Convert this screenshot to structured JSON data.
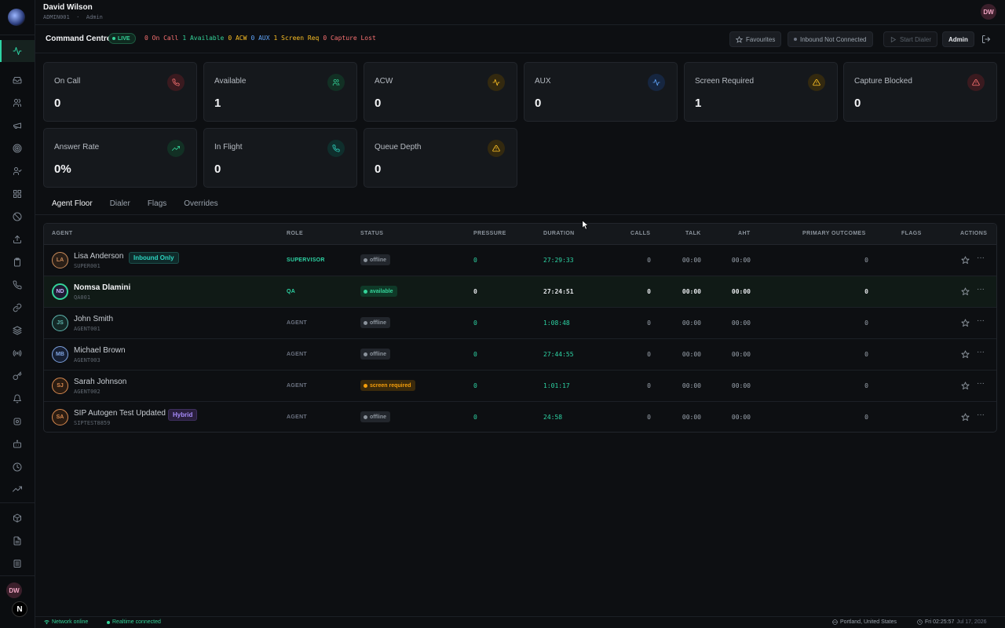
{
  "user": {
    "name": "David Wilson",
    "code": "ADMIN001",
    "role": "Admin",
    "initials": "DW"
  },
  "command": {
    "title": "Command Centre",
    "live_label": "LIVE",
    "counters": [
      {
        "text": "0 On Call",
        "color": "#f87171"
      },
      {
        "text": "1 Available",
        "color": "#34d399"
      },
      {
        "text": "0 ACW",
        "color": "#fbbf24"
      },
      {
        "text": "0 AUX",
        "color": "#60a5fa"
      },
      {
        "text": "1 Screen Req",
        "color": "#fbbf24"
      },
      {
        "text": "0 Capture Lost",
        "color": "#f87171"
      }
    ],
    "buttons": {
      "favourites": "Favourites",
      "inbound": "Inbound Not Connected",
      "start_dialer": "Start Dialer",
      "admin": "Admin"
    }
  },
  "metrics": [
    {
      "label": "On Call",
      "value": "0",
      "icon": "phone-icon",
      "color": "#f87171",
      "bg": "#3a1a1f"
    },
    {
      "label": "Available",
      "value": "1",
      "icon": "users-icon",
      "color": "#34d399",
      "bg": "#123024"
    },
    {
      "label": "ACW",
      "value": "0",
      "icon": "activity-icon",
      "color": "#fbbf24",
      "bg": "#33290f"
    },
    {
      "label": "AUX",
      "value": "0",
      "icon": "activity-icon",
      "color": "#60a5fa",
      "bg": "#162640"
    },
    {
      "label": "Screen Required",
      "value": "1",
      "icon": "alert-triangle-icon",
      "color": "#fbbf24",
      "bg": "#33290f"
    },
    {
      "label": "Capture Blocked",
      "value": "0",
      "icon": "alert-triangle-icon",
      "color": "#f87171",
      "bg": "#3a1a1f"
    },
    {
      "label": "Answer Rate",
      "value": "0%",
      "icon": "trending-up-icon",
      "color": "#34d399",
      "bg": "#123024"
    },
    {
      "label": "In Flight",
      "value": "0",
      "icon": "phone-icon",
      "color": "#2dd4bf",
      "bg": "#0f2e2c"
    },
    {
      "label": "Queue Depth",
      "value": "0",
      "icon": "alert-triangle-icon",
      "color": "#fbbf24",
      "bg": "#33290f"
    }
  ],
  "tabs": [
    "Agent Floor",
    "Dialer",
    "Flags",
    "Overrides"
  ],
  "table": {
    "headers": {
      "agent": "AGENT",
      "role": "ROLE",
      "status": "STATUS",
      "pressure": "PRESSURE",
      "duration": "DURATION",
      "calls": "CALLS",
      "talk": "TALK",
      "aht": "AHT",
      "primary": "PRIMARY OUTCOMES",
      "flags": "FLAGS",
      "actions": "ACTIONS"
    },
    "rows": [
      {
        "initials": "LA",
        "name": "Lisa Anderson",
        "code": "SUPER001",
        "tag": "Inbound Only",
        "tag_kind": "inbound",
        "role": "SUPERVISOR",
        "status": "offline",
        "pressure": "0",
        "duration": "27:29:33",
        "calls": "0",
        "talk": "00:00",
        "aht": "00:00",
        "primary": "0",
        "flags": "",
        "avatar_color": "#c98b5a",
        "avatar_bg": "#2a1f17"
      },
      {
        "initials": "ND",
        "name": "Nomsa Dlamini",
        "code": "QA001",
        "tag": "",
        "tag_kind": "",
        "role": "QA",
        "status": "available",
        "pressure": "0",
        "duration": "27:24:51",
        "calls": "0",
        "talk": "00:00",
        "aht": "00:00",
        "primary": "0",
        "flags": "",
        "avatar_color": "#c4b5fd",
        "avatar_bg": "#1f1a33",
        "highlight": true
      },
      {
        "initials": "JS",
        "name": "John Smith",
        "code": "AGENT001",
        "tag": "",
        "tag_kind": "",
        "role": "AGENT",
        "status": "offline",
        "pressure": "0",
        "duration": "1:08:48",
        "calls": "0",
        "talk": "00:00",
        "aht": "00:00",
        "primary": "0",
        "flags": "",
        "avatar_color": "#5fb7b0",
        "avatar_bg": "#142826"
      },
      {
        "initials": "MB",
        "name": "Michael Brown",
        "code": "AGENT003",
        "tag": "",
        "tag_kind": "",
        "role": "AGENT",
        "status": "offline",
        "pressure": "0",
        "duration": "27:44:55",
        "calls": "0",
        "talk": "00:00",
        "aht": "00:00",
        "primary": "0",
        "flags": "",
        "avatar_color": "#7fa3e0",
        "avatar_bg": "#161f33"
      },
      {
        "initials": "SJ",
        "name": "Sarah Johnson",
        "code": "AGENT002",
        "tag": "",
        "tag_kind": "",
        "role": "AGENT",
        "status": "screen required",
        "pressure": "0",
        "duration": "1:01:17",
        "calls": "0",
        "talk": "00:00",
        "aht": "00:00",
        "primary": "0",
        "flags": "",
        "avatar_color": "#d98a4f",
        "avatar_bg": "#2a1c12"
      },
      {
        "initials": "SA",
        "name": "SIP Autogen Test Updated",
        "code": "SIPTEST8859",
        "tag": "Hybrid",
        "tag_kind": "hybrid",
        "role": "AGENT",
        "status": "offline",
        "pressure": "0",
        "duration": "24:58",
        "calls": "0",
        "talk": "00:00",
        "aht": "00:00",
        "primary": "0",
        "flags": "",
        "avatar_color": "#d98a4f",
        "avatar_bg": "#2a1c12"
      }
    ]
  },
  "footer": {
    "network": "Network online",
    "realtime": "Realtime connected",
    "location": "Portland, United States",
    "time": "Fri 02:25:57",
    "date": "Jul 17, 2026"
  },
  "rail_icons": [
    "activity-icon",
    "inbox-icon",
    "users-icon",
    "megaphone-icon",
    "target-icon",
    "user-check-icon",
    "grid-icon",
    "ban-icon",
    "upload-icon",
    "clipboard-icon",
    "phone-icon",
    "link-icon",
    "layers-icon",
    "radio-icon",
    "key-icon",
    "bell-icon",
    "settings-icon",
    "bot-icon",
    "clock-icon",
    "trending-up-icon",
    "package-icon",
    "file-icon",
    "list-icon"
  ]
}
